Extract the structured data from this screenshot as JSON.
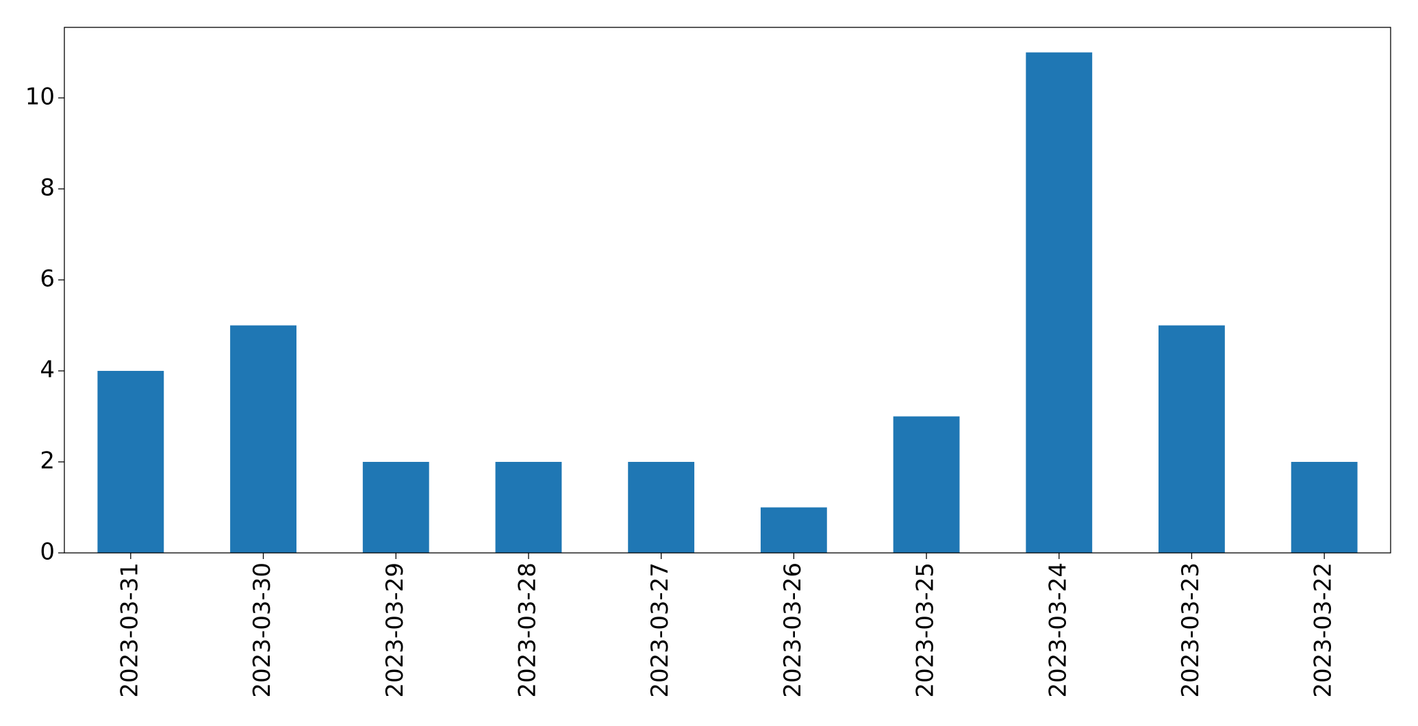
{
  "chart_data": {
    "type": "bar",
    "categories": [
      "2023-03-31",
      "2023-03-30",
      "2023-03-29",
      "2023-03-28",
      "2023-03-27",
      "2023-03-26",
      "2023-03-25",
      "2023-03-24",
      "2023-03-23",
      "2023-03-22"
    ],
    "values": [
      4,
      5,
      2,
      2,
      2,
      1,
      3,
      11,
      5,
      2
    ],
    "color": "#1f77b4",
    "ylim": [
      0,
      11.55
    ],
    "yticks": [
      0,
      2,
      4,
      6,
      8,
      10
    ],
    "grid": false
  }
}
